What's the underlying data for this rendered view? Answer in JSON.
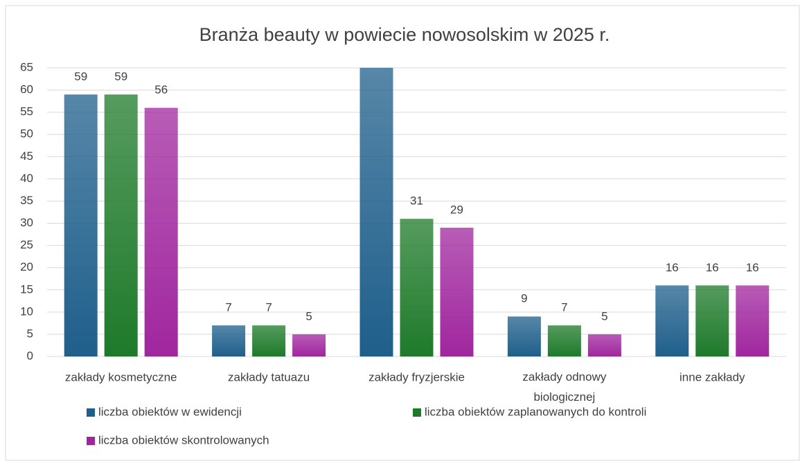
{
  "chart_data": {
    "type": "bar",
    "title": "Branża beauty w powiecie nowosolskim w 2025 r.",
    "categories": [
      "zakłady kosmetyczne",
      "zakłady tatuazu",
      "zakłady fryzjerskie",
      "zakłady odnowy biologicznej",
      "inne zakłady"
    ],
    "series": [
      {
        "name": "liczba obiektów w ewidencji",
        "color": "#1f5f8b",
        "values": [
          59,
          7,
          65,
          9,
          16
        ]
      },
      {
        "name": "liczba obiektów zaplanowanych do kontroli",
        "color": "#1e7a2a",
        "values": [
          59,
          7,
          31,
          7,
          16
        ]
      },
      {
        "name": "liczba obiektów skontrolowanych",
        "color": "#a0269e",
        "values": [
          56,
          5,
          29,
          5,
          16
        ]
      }
    ],
    "ylim": [
      0,
      65
    ],
    "yticks": [
      0,
      5,
      10,
      15,
      20,
      25,
      30,
      35,
      40,
      45,
      50,
      55,
      60,
      65
    ],
    "grid": true
  }
}
